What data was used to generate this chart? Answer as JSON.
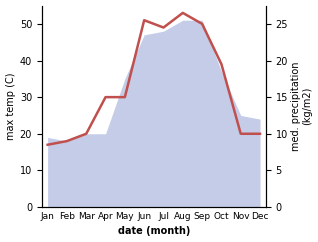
{
  "months": [
    "Jan",
    "Feb",
    "Mar",
    "Apr",
    "May",
    "Jun",
    "Jul",
    "Aug",
    "Sep",
    "Oct",
    "Nov",
    "Dec"
  ],
  "temperature": [
    17,
    18,
    20,
    30,
    30,
    51,
    49,
    53,
    50,
    39,
    20,
    20
  ],
  "precipitation": [
    9.5,
    9,
    10,
    10,
    17.5,
    23.5,
    24,
    25.5,
    25.5,
    18.5,
    12.5,
    12
  ],
  "temp_color": "#c0504d",
  "precip_fill_color": "#c5cce8",
  "left_ylabel": "max temp (C)",
  "right_ylabel": "med. precipitation\n(kg/m2)",
  "xlabel": "date (month)",
  "ylim_left": [
    0,
    55
  ],
  "ylim_right": [
    0,
    27.5
  ],
  "left_yticks": [
    0,
    10,
    20,
    30,
    40,
    50
  ],
  "right_yticks": [
    0,
    5,
    10,
    15,
    20,
    25
  ],
  "background_color": "#ffffff",
  "temp_linewidth": 1.8,
  "xlabel_fontsize": 7,
  "ylabel_fontsize": 7,
  "tick_fontsize": 7,
  "month_fontsize": 6.5
}
